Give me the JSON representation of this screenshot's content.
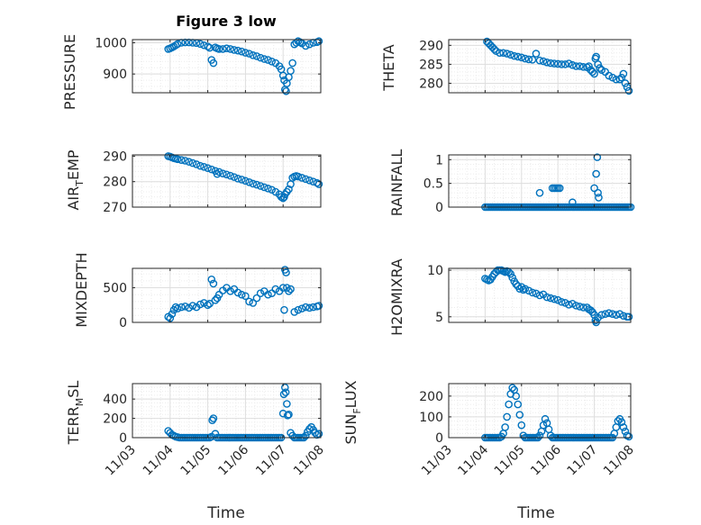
{
  "figure": {
    "title": "Figure 3 low",
    "xlabel": "Time",
    "marker_color": "#0072BD"
  },
  "x_tick_labels": [
    "11/03",
    "11/04",
    "11/05",
    "11/06",
    "11/07",
    "11/08"
  ],
  "chart_data": [
    {
      "type": "scatter",
      "ylabel": "PRESSURE",
      "xlim": [
        0,
        5
      ],
      "ylim": [
        840,
        1010
      ],
      "yticks": [
        900,
        1000
      ],
      "grid": true,
      "x": [
        0.95,
        1.0,
        1.05,
        1.1,
        1.15,
        1.2,
        1.3,
        1.4,
        1.5,
        1.6,
        1.7,
        1.8,
        1.9,
        2.0,
        2.05,
        2.1,
        2.15,
        2.2,
        2.25,
        2.3,
        2.4,
        2.5,
        2.6,
        2.7,
        2.8,
        2.9,
        3.0,
        3.1,
        3.2,
        3.3,
        3.4,
        3.5,
        3.6,
        3.7,
        3.8,
        3.9,
        3.95,
        4.0,
        4.03,
        4.05,
        4.08,
        4.1,
        4.15,
        4.2,
        4.25,
        4.3,
        4.35,
        4.4,
        4.45,
        4.5,
        4.6,
        4.7,
        4.8,
        4.9,
        4.95
      ],
      "y": [
        980,
        982,
        985,
        988,
        992,
        996,
        1000,
        1001,
        1001,
        1000,
        999,
        996,
        992,
        988,
        984,
        945,
        935,
        985,
        982,
        980,
        980,
        982,
        980,
        977,
        975,
        972,
        968,
        965,
        960,
        957,
        952,
        948,
        945,
        940,
        935,
        925,
        915,
        895,
        880,
        850,
        845,
        870,
        890,
        910,
        935,
        995,
        1000,
        1005,
        1002,
        998,
        990,
        995,
        1000,
        1002,
        1005
      ]
    },
    {
      "type": "scatter",
      "ylabel": "THETA",
      "xlim": [
        0,
        5
      ],
      "ylim": [
        277.5,
        291.5
      ],
      "yticks": [
        280,
        285,
        290
      ],
      "grid": true,
      "x": [
        1.05,
        1.1,
        1.15,
        1.2,
        1.25,
        1.3,
        1.4,
        1.5,
        1.6,
        1.7,
        1.8,
        1.9,
        2.0,
        2.1,
        2.2,
        2.3,
        2.4,
        2.5,
        2.6,
        2.7,
        2.8,
        2.9,
        3.0,
        3.1,
        3.2,
        3.3,
        3.4,
        3.5,
        3.6,
        3.7,
        3.8,
        3.85,
        3.9,
        3.95,
        4.0,
        4.03,
        4.05,
        4.1,
        4.15,
        4.2,
        4.3,
        4.4,
        4.5,
        4.6,
        4.7,
        4.75,
        4.8,
        4.85,
        4.9,
        4.95
      ],
      "y": [
        291,
        290.5,
        290,
        289.5,
        289,
        288.5,
        288,
        288,
        287.8,
        287.5,
        287.2,
        287,
        286.8,
        286.5,
        286.3,
        286.2,
        287.8,
        286,
        285.8,
        285.5,
        285.3,
        285.2,
        285.1,
        285,
        285,
        285.2,
        284.8,
        284.5,
        284.5,
        284.3,
        284.2,
        284.5,
        283.5,
        283,
        282.5,
        286.5,
        287,
        285,
        284,
        283.5,
        283,
        282,
        281.5,
        281,
        281,
        281.5,
        282.5,
        280,
        279,
        278
      ]
    },
    {
      "type": "scatter",
      "ylabel": "AIR_TEMP",
      "xlim": [
        0,
        5
      ],
      "ylim": [
        270,
        290.5
      ],
      "yticks": [
        270,
        280,
        290
      ],
      "grid": true,
      "x": [
        0.95,
        1.0,
        1.05,
        1.1,
        1.15,
        1.2,
        1.3,
        1.4,
        1.5,
        1.6,
        1.7,
        1.8,
        1.9,
        2.0,
        2.1,
        2.2,
        2.25,
        2.3,
        2.4,
        2.5,
        2.6,
        2.7,
        2.8,
        2.9,
        3.0,
        3.1,
        3.2,
        3.3,
        3.4,
        3.5,
        3.6,
        3.7,
        3.8,
        3.9,
        3.95,
        4.0,
        4.03,
        4.05,
        4.1,
        4.15,
        4.2,
        4.25,
        4.3,
        4.35,
        4.4,
        4.5,
        4.6,
        4.7,
        4.8,
        4.9,
        4.95
      ],
      "y": [
        290,
        289.8,
        289.5,
        289.2,
        289,
        288.8,
        288.5,
        288.2,
        287.8,
        287.3,
        286.8,
        286.2,
        285.8,
        285.3,
        284.8,
        284.2,
        283,
        283.8,
        283.2,
        282.8,
        282.3,
        281.8,
        281.2,
        280.8,
        280.3,
        279.8,
        279.2,
        278.8,
        278.3,
        277.8,
        277.3,
        276.8,
        276,
        275,
        274,
        273.5,
        274,
        275,
        276,
        277,
        279,
        281.5,
        282,
        282.2,
        282,
        281.5,
        281,
        280.5,
        280,
        279.5,
        279
      ]
    },
    {
      "type": "scatter",
      "ylabel": "RAINFALL",
      "xlim": [
        0,
        5
      ],
      "ylim": [
        0,
        1.1
      ],
      "yticks": [
        0,
        0.5,
        1
      ],
      "grid": true,
      "x": [
        1.0,
        1.05,
        1.1,
        1.15,
        1.2,
        1.25,
        1.3,
        1.35,
        1.4,
        1.45,
        1.5,
        1.55,
        1.6,
        1.65,
        1.7,
        1.75,
        1.8,
        1.85,
        1.9,
        1.95,
        2.0,
        2.05,
        2.1,
        2.15,
        2.2,
        2.25,
        2.3,
        2.35,
        2.4,
        2.45,
        2.5,
        2.55,
        2.6,
        2.65,
        2.7,
        2.75,
        2.8,
        2.85,
        2.9,
        2.95,
        3.0,
        3.05,
        3.1,
        3.15,
        3.2,
        3.25,
        3.3,
        3.35,
        3.4,
        3.45,
        3.5,
        3.55,
        3.6,
        3.65,
        3.7,
        3.75,
        3.8,
        3.85,
        3.9,
        3.95,
        4.0,
        4.05,
        4.1,
        4.15,
        4.2,
        4.25,
        4.3,
        4.35,
        4.4,
        4.45,
        4.5,
        4.55,
        4.6,
        4.65,
        4.7,
        4.75,
        4.8,
        4.85,
        4.9,
        4.95,
        5.0,
        2.5,
        2.85,
        2.9,
        2.95,
        3.0,
        3.05,
        3.4,
        4.0,
        4.05,
        4.08,
        4.1,
        4.12
      ],
      "y": [
        0,
        0,
        0,
        0,
        0,
        0,
        0,
        0,
        0,
        0,
        0,
        0,
        0,
        0,
        0,
        0,
        0,
        0,
        0,
        0,
        0,
        0,
        0,
        0,
        0,
        0,
        0,
        0,
        0,
        0,
        0,
        0,
        0,
        0,
        0,
        0,
        0,
        0,
        0,
        0,
        0,
        0,
        0,
        0,
        0,
        0,
        0,
        0,
        0,
        0,
        0,
        0,
        0,
        0,
        0,
        0,
        0,
        0,
        0,
        0,
        0,
        0,
        0,
        0,
        0,
        0,
        0,
        0,
        0,
        0,
        0,
        0,
        0,
        0,
        0,
        0,
        0,
        0,
        0,
        0,
        0,
        0.3,
        0.4,
        0.4,
        0.4,
        0.4,
        0.4,
        0.1,
        0.4,
        0.7,
        1.05,
        0.3,
        0.2
      ]
    },
    {
      "type": "scatter",
      "ylabel": "MIXDEPTH",
      "xlim": [
        0,
        5
      ],
      "ylim": [
        0,
        780
      ],
      "yticks": [
        0,
        500
      ],
      "grid": true,
      "x": [
        0.95,
        1.0,
        1.05,
        1.1,
        1.15,
        1.2,
        1.3,
        1.4,
        1.5,
        1.6,
        1.7,
        1.8,
        1.9,
        2.0,
        2.05,
        2.1,
        2.15,
        2.2,
        2.25,
        2.3,
        2.4,
        2.5,
        2.6,
        2.7,
        2.8,
        2.9,
        3.0,
        3.1,
        3.2,
        3.3,
        3.4,
        3.5,
        3.6,
        3.7,
        3.8,
        3.9,
        4.0,
        4.03,
        4.05,
        4.08,
        4.1,
        4.15,
        4.2,
        4.3,
        4.4,
        4.5,
        4.6,
        4.7,
        4.8,
        4.9,
        4.95
      ],
      "y": [
        80,
        60,
        120,
        180,
        220,
        200,
        220,
        230,
        210,
        240,
        220,
        260,
        280,
        250,
        270,
        620,
        560,
        320,
        350,
        400,
        460,
        500,
        450,
        480,
        430,
        400,
        380,
        300,
        280,
        350,
        420,
        450,
        400,
        420,
        480,
        450,
        500,
        180,
        760,
        720,
        500,
        450,
        480,
        150,
        180,
        200,
        220,
        210,
        220,
        230,
        240
      ]
    },
    {
      "type": "scatter",
      "ylabel": "H2OMIXRA",
      "xlim": [
        0,
        5
      ],
      "ylim": [
        4.4,
        10.2
      ],
      "yticks": [
        5,
        10
      ],
      "grid": true,
      "x": [
        1.0,
        1.05,
        1.1,
        1.15,
        1.2,
        1.25,
        1.3,
        1.35,
        1.4,
        1.45,
        1.5,
        1.55,
        1.6,
        1.65,
        1.7,
        1.75,
        1.8,
        1.85,
        1.9,
        1.95,
        2.0,
        2.05,
        2.1,
        2.2,
        2.3,
        2.4,
        2.5,
        2.6,
        2.7,
        2.8,
        2.9,
        3.0,
        3.1,
        3.2,
        3.3,
        3.4,
        3.5,
        3.6,
        3.7,
        3.8,
        3.85,
        3.9,
        3.95,
        4.0,
        4.03,
        4.05,
        4.1,
        4.2,
        4.3,
        4.4,
        4.5,
        4.6,
        4.7,
        4.8,
        4.9,
        4.95
      ],
      "y": [
        9.1,
        9.0,
        8.9,
        9.0,
        9.3,
        9.6,
        9.8,
        10,
        10,
        10,
        9.9,
        9.8,
        9.9,
        9.8,
        9.6,
        9.2,
        8.8,
        8.5,
        8.3,
        8.0,
        8.2,
        7.9,
        8.0,
        7.8,
        7.6,
        7.5,
        7.3,
        7.4,
        7.1,
        7.0,
        6.9,
        6.8,
        6.6,
        6.5,
        6.3,
        6.4,
        6.2,
        6.1,
        6.0,
        6.0,
        5.8,
        5.7,
        5.5,
        5.2,
        4.6,
        4.4,
        4.9,
        5.2,
        5.3,
        5.4,
        5.3,
        5.2,
        5.3,
        5.1,
        5.0,
        5.0
      ]
    },
    {
      "type": "scatter",
      "ylabel": "TERR_MSL",
      "xlim": [
        0,
        5
      ],
      "ylim": [
        0,
        560
      ],
      "yticks": [
        0,
        200,
        400
      ],
      "grid": true,
      "x": [
        0.95,
        1.0,
        1.05,
        1.1,
        1.15,
        1.2,
        1.25,
        1.3,
        1.35,
        1.4,
        1.45,
        1.5,
        1.55,
        1.6,
        1.65,
        1.7,
        1.75,
        1.8,
        1.85,
        1.9,
        1.95,
        2.0,
        2.05,
        2.1,
        2.12,
        2.15,
        2.2,
        2.25,
        2.3,
        2.35,
        2.4,
        2.45,
        2.5,
        2.55,
        2.6,
        2.65,
        2.7,
        2.75,
        2.8,
        2.85,
        2.9,
        2.95,
        3.0,
        3.05,
        3.1,
        3.15,
        3.2,
        3.25,
        3.3,
        3.35,
        3.4,
        3.45,
        3.5,
        3.55,
        3.6,
        3.65,
        3.7,
        3.75,
        3.8,
        3.85,
        3.9,
        3.95,
        4.0,
        4.02,
        4.05,
        4.07,
        4.1,
        4.12,
        4.15,
        4.2,
        4.25,
        4.3,
        4.35,
        4.4,
        4.45,
        4.5,
        4.55,
        4.6,
        4.65,
        4.7,
        4.75,
        4.8,
        4.85,
        4.9,
        4.95
      ],
      "y": [
        70,
        50,
        30,
        20,
        10,
        5,
        0,
        0,
        0,
        0,
        0,
        0,
        0,
        0,
        0,
        0,
        0,
        0,
        0,
        0,
        0,
        0,
        0,
        10,
        180,
        200,
        40,
        0,
        0,
        0,
        0,
        0,
        0,
        0,
        0,
        0,
        0,
        0,
        0,
        0,
        0,
        0,
        0,
        0,
        0,
        0,
        0,
        0,
        0,
        0,
        0,
        0,
        0,
        0,
        0,
        0,
        0,
        0,
        0,
        0,
        0,
        0,
        250,
        450,
        520,
        470,
        350,
        230,
        240,
        50,
        20,
        0,
        0,
        0,
        0,
        0,
        0,
        20,
        60,
        90,
        110,
        80,
        50,
        30,
        40
      ]
    },
    {
      "type": "scatter",
      "ylabel": "SUN_FLUX",
      "xlim": [
        0,
        5
      ],
      "ylim": [
        0,
        260
      ],
      "yticks": [
        0,
        100,
        200
      ],
      "grid": true,
      "x": [
        1.0,
        1.05,
        1.1,
        1.15,
        1.2,
        1.25,
        1.3,
        1.35,
        1.4,
        1.45,
        1.5,
        1.55,
        1.6,
        1.65,
        1.7,
        1.75,
        1.8,
        1.85,
        1.9,
        1.95,
        2.0,
        2.05,
        2.1,
        2.15,
        2.2,
        2.25,
        2.3,
        2.35,
        2.4,
        2.45,
        2.5,
        2.55,
        2.6,
        2.65,
        2.7,
        2.75,
        2.8,
        2.85,
        2.9,
        2.95,
        3.0,
        3.05,
        3.1,
        3.15,
        3.2,
        3.25,
        3.3,
        3.35,
        3.4,
        3.45,
        3.5,
        3.55,
        3.6,
        3.65,
        3.7,
        3.75,
        3.8,
        3.85,
        3.9,
        3.95,
        4.0,
        4.05,
        4.1,
        4.15,
        4.2,
        4.25,
        4.3,
        4.35,
        4.4,
        4.45,
        4.5,
        4.55,
        4.6,
        4.65,
        4.7,
        4.75,
        4.8,
        4.85,
        4.9,
        4.95
      ],
      "y": [
        0,
        0,
        0,
        0,
        0,
        0,
        0,
        0,
        0,
        5,
        20,
        50,
        100,
        160,
        210,
        240,
        230,
        200,
        160,
        110,
        60,
        10,
        0,
        0,
        0,
        0,
        0,
        0,
        0,
        0,
        10,
        30,
        60,
        90,
        70,
        40,
        10,
        0,
        0,
        0,
        0,
        0,
        0,
        0,
        0,
        0,
        0,
        0,
        0,
        0,
        0,
        0,
        0,
        0,
        0,
        0,
        0,
        0,
        0,
        0,
        0,
        0,
        0,
        0,
        0,
        0,
        0,
        0,
        0,
        0,
        0,
        20,
        50,
        80,
        90,
        75,
        50,
        30,
        10,
        5
      ]
    }
  ]
}
